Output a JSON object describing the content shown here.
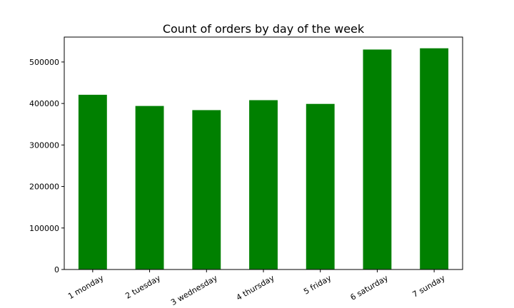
{
  "chart_data": {
    "type": "bar",
    "title": "Count of orders by day of the week",
    "xlabel": "",
    "ylabel": "",
    "categories": [
      "1 monday",
      "2 tuesday",
      "3 wednesday",
      "4 thursday",
      "5 friday",
      "6 saturday",
      "7 sunday"
    ],
    "values": [
      421000,
      394000,
      384000,
      408000,
      399000,
      530000,
      533000
    ],
    "ylim": [
      0,
      560000
    ],
    "yticks": [
      0,
      100000,
      200000,
      300000,
      400000,
      500000
    ],
    "ytick_labels": [
      "0",
      "100000",
      "200000",
      "300000",
      "400000",
      "500000"
    ],
    "bar_color": "#008000",
    "grid": false,
    "legend": "none"
  }
}
